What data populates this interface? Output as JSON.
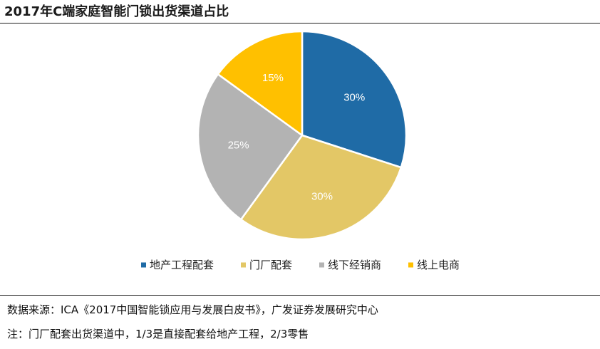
{
  "title": "2017年C端家庭智能门锁出货渠道占比",
  "chart_data": {
    "type": "pie",
    "title": "2017年C端家庭智能门锁出货渠道占比",
    "unit": "%",
    "start_angle_deg": 0,
    "direction": "clockwise",
    "legend_position": "bottom",
    "slices": [
      {
        "label": "地产工程配套",
        "value": 30,
        "value_label": "30%",
        "color": "#1F6BA6"
      },
      {
        "label": "门厂配套",
        "value": 30,
        "value_label": "30%",
        "color": "#E3C766"
      },
      {
        "label": "线下经销商",
        "value": 25,
        "value_label": "25%",
        "color": "#B3B3B3"
      },
      {
        "label": "线上电商",
        "value": 15,
        "value_label": "15%",
        "color": "#FFC000"
      }
    ]
  },
  "footer": {
    "source": "数据来源：ICA《2017中国智能锁应用与发展白皮书》，广发证券发展研究中心",
    "note": "注：门厂配套出货渠道中，1/3是直接配套给地产工程，2/3零售"
  }
}
